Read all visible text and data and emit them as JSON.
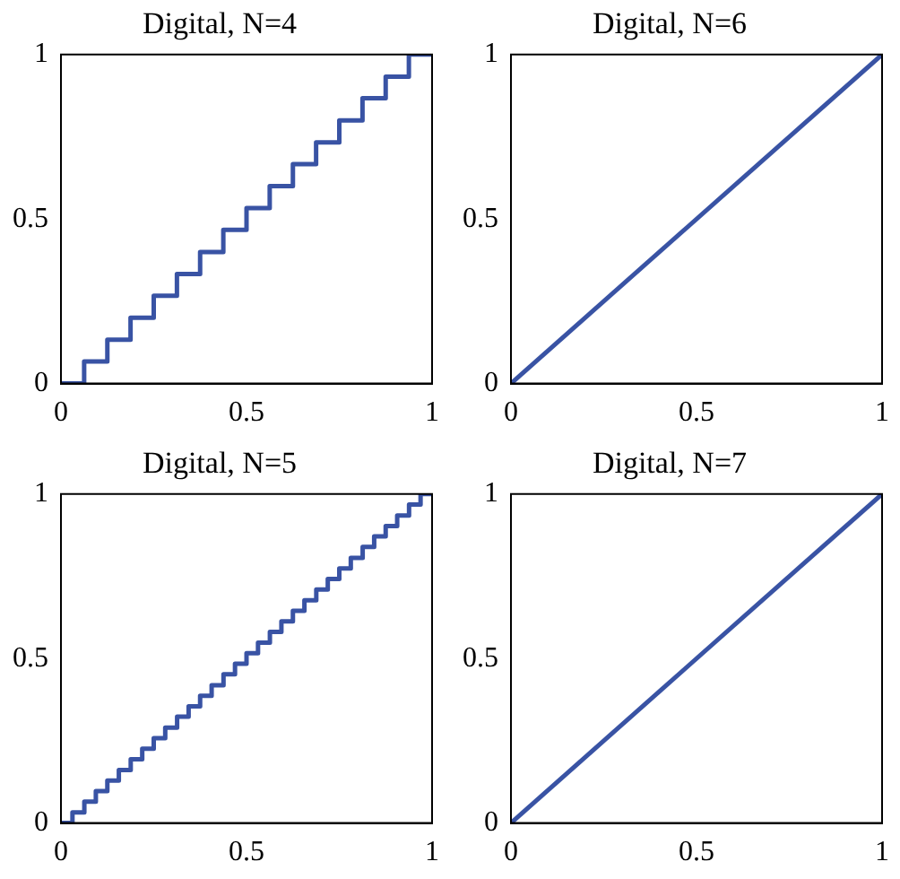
{
  "chart_data": [
    {
      "type": "step",
      "title": "Digital, N=4",
      "xlim": [
        0,
        1
      ],
      "ylim": [
        0,
        1
      ],
      "xticks": [
        0,
        0.5,
        1
      ],
      "yticks": [
        0,
        0.5,
        1
      ],
      "grid": false,
      "legend": false,
      "series": [
        {
          "color": "#3953a4",
          "x": [
            0,
            0.0625,
            0.125,
            0.1875,
            0.25,
            0.3125,
            0.375,
            0.4375,
            0.5,
            0.5625,
            0.625,
            0.6875,
            0.75,
            0.8125,
            0.875,
            0.9375,
            1
          ],
          "values": [
            0,
            0.067,
            0.133,
            0.2,
            0.267,
            0.333,
            0.4,
            0.467,
            0.533,
            0.6,
            0.667,
            0.733,
            0.8,
            0.867,
            0.933,
            1,
            1
          ]
        }
      ]
    },
    {
      "type": "line",
      "title": "Digital, N=6",
      "xlim": [
        0,
        1
      ],
      "ylim": [
        0,
        1
      ],
      "xticks": [
        0,
        0.5,
        1
      ],
      "yticks": [
        0,
        0.5,
        1
      ],
      "grid": false,
      "legend": false,
      "series": [
        {
          "color": "#3953a4",
          "x": [
            0,
            1
          ],
          "values": [
            0,
            1
          ]
        }
      ]
    },
    {
      "type": "step",
      "title": "Digital, N=5",
      "xlim": [
        0,
        1
      ],
      "ylim": [
        0,
        1
      ],
      "xticks": [
        0,
        0.5,
        1
      ],
      "yticks": [
        0,
        0.5,
        1
      ],
      "grid": false,
      "legend": false,
      "series": [
        {
          "color": "#3953a4",
          "x": [
            0,
            0.031,
            0.063,
            0.094,
            0.125,
            0.156,
            0.188,
            0.219,
            0.25,
            0.281,
            0.313,
            0.344,
            0.375,
            0.406,
            0.438,
            0.469,
            0.5,
            0.531,
            0.563,
            0.594,
            0.625,
            0.656,
            0.688,
            0.719,
            0.75,
            0.781,
            0.813,
            0.844,
            0.875,
            0.906,
            0.938,
            0.969,
            1
          ],
          "values": [
            0,
            0.032,
            0.065,
            0.097,
            0.129,
            0.161,
            0.194,
            0.226,
            0.258,
            0.29,
            0.323,
            0.355,
            0.387,
            0.419,
            0.452,
            0.484,
            0.516,
            0.548,
            0.581,
            0.613,
            0.645,
            0.677,
            0.71,
            0.742,
            0.774,
            0.806,
            0.839,
            0.871,
            0.903,
            0.935,
            0.968,
            1,
            1
          ]
        }
      ]
    },
    {
      "type": "line",
      "title": "Digital, N=7",
      "xlim": [
        0,
        1
      ],
      "ylim": [
        0,
        1
      ],
      "xticks": [
        0,
        0.5,
        1
      ],
      "yticks": [
        0,
        0.5,
        1
      ],
      "grid": false,
      "legend": false,
      "series": [
        {
          "color": "#3953a4",
          "x": [
            0,
            1
          ],
          "values": [
            0,
            1
          ]
        }
      ]
    }
  ]
}
